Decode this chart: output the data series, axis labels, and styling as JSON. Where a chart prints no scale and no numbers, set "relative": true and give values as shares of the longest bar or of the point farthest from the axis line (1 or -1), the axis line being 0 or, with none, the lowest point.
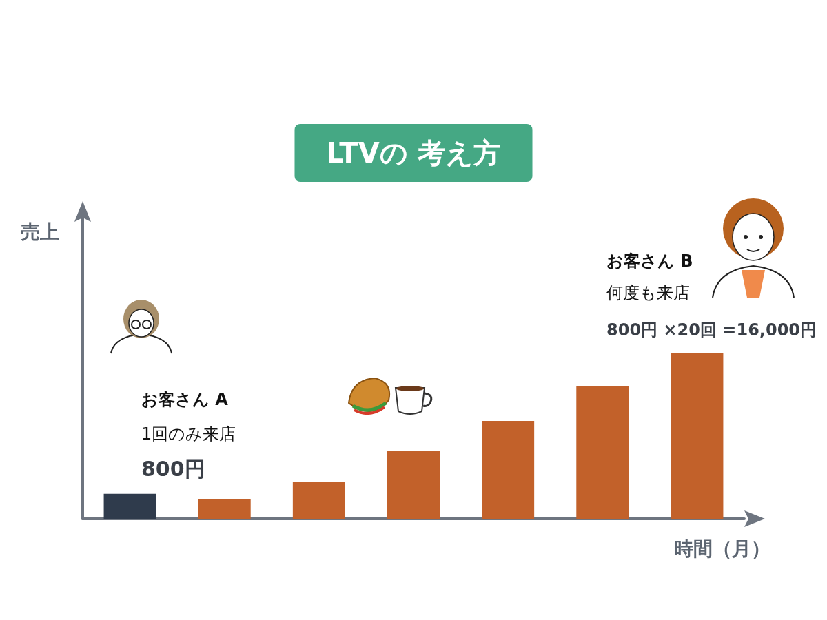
{
  "chart_data": {
    "type": "bar",
    "title": "LTVの 考え方",
    "xlabel": "時間（月）",
    "relative": true,
    "categories": [
      null,
      null,
      null,
      null,
      null,
      null,
      null
    ],
    "values": [
      0.15,
      0.12,
      0.22,
      0.41,
      0.59,
      0.8,
      1
    ],
    "colors": [
      "#2f3b4c",
      "#c2612a",
      "#c2612a",
      "#c2612a",
      "#c2612a",
      "#c2612a",
      "#c2612a"
    ],
    "annotations": [
      "お客さん A",
      "1回のみ来店",
      "800円",
      "お客さん B",
      "何度も来店",
      "800円 ×20回 =16,000円",
      "売上"
    ],
    "grid": false
  }
}
